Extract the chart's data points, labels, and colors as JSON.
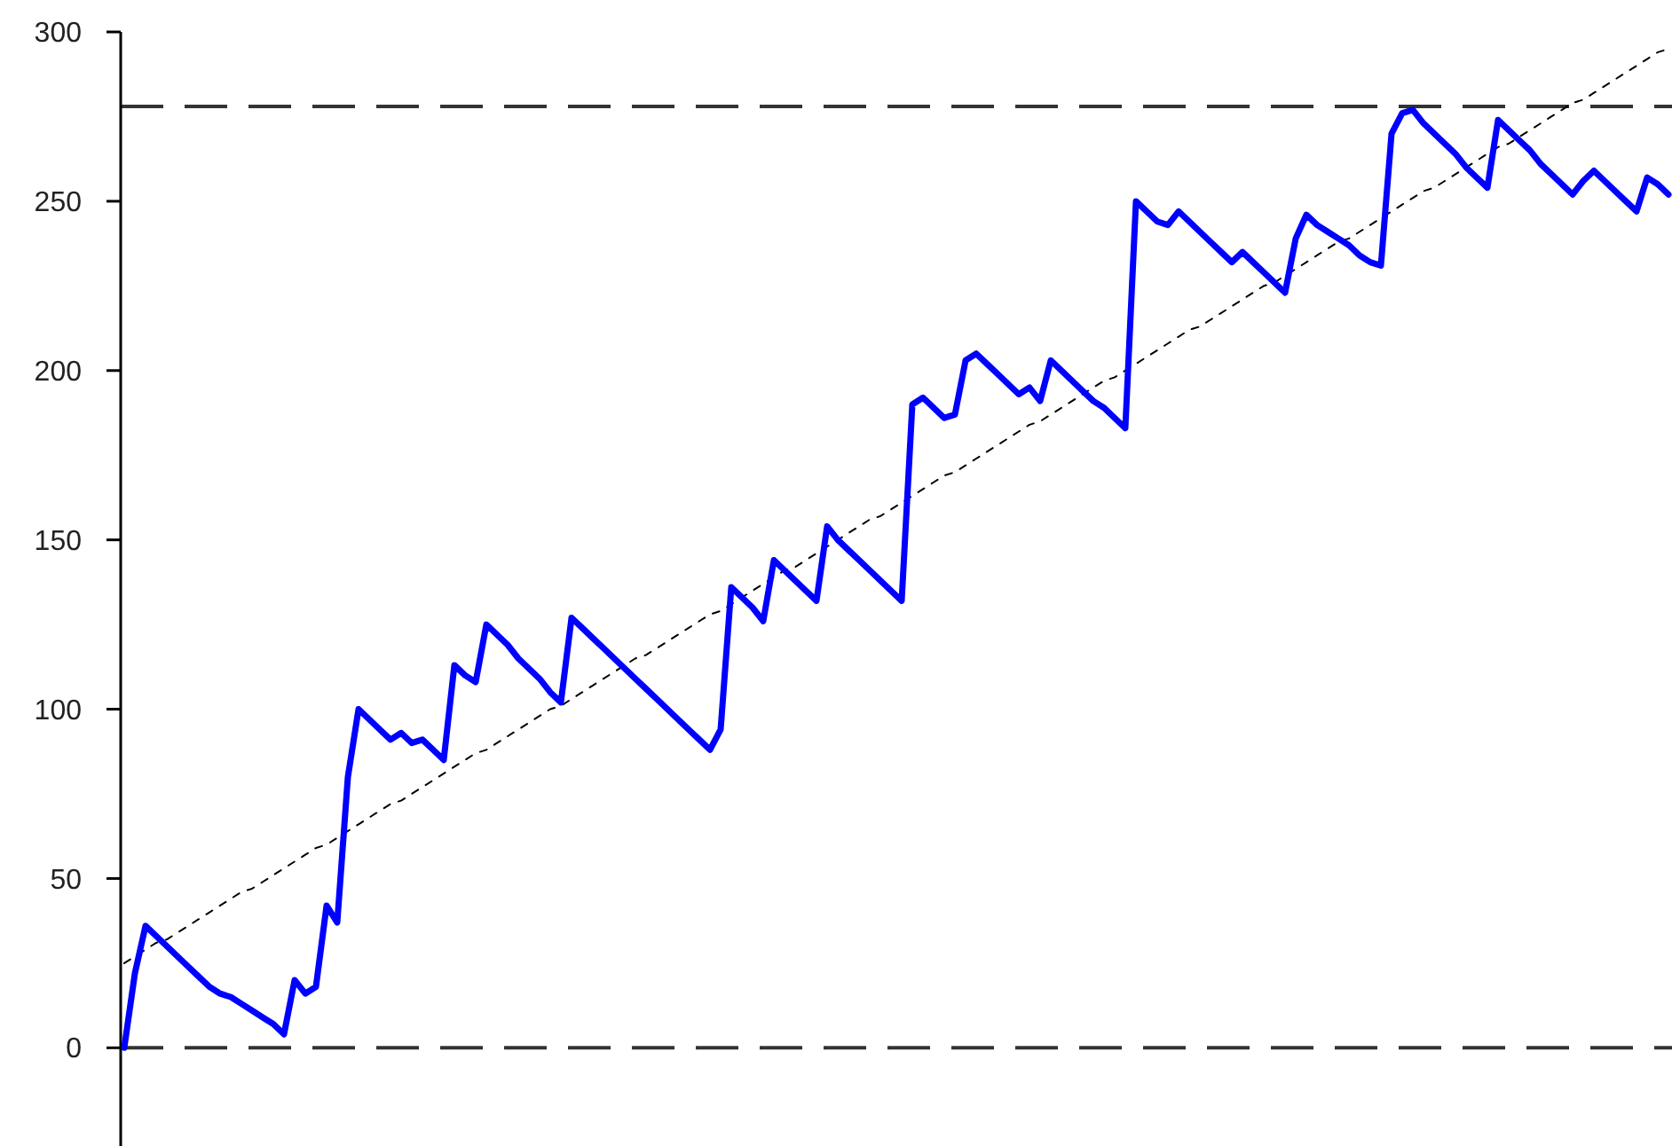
{
  "chart_data": {
    "type": "line",
    "categories": [
      null,
      null,
      null,
      null,
      null,
      null,
      null,
      null,
      null,
      null,
      null,
      null,
      null,
      null,
      null,
      null,
      null,
      null,
      null,
      null,
      null,
      null,
      null,
      null,
      null,
      null,
      null,
      null,
      null,
      null,
      null,
      null,
      null,
      null,
      null,
      null,
      null,
      null,
      null,
      null,
      null,
      null,
      null,
      null,
      null,
      null,
      null,
      null,
      null,
      null,
      null,
      null,
      null,
      null,
      null,
      null,
      null,
      null,
      null,
      null,
      null,
      null,
      null,
      null,
      null,
      null,
      null,
      null,
      null,
      null,
      null,
      null,
      null,
      null,
      null,
      null,
      null,
      null,
      null,
      null,
      null,
      null,
      null,
      null,
      null,
      null,
      null,
      null,
      null,
      null,
      null,
      null,
      null,
      null,
      null,
      null,
      null,
      null,
      null,
      null,
      null,
      null,
      null,
      null,
      null,
      null,
      null,
      null,
      null,
      null,
      null,
      null,
      null,
      null,
      null,
      null,
      null,
      null,
      null,
      null,
      null,
      null,
      null,
      null,
      null,
      null,
      null,
      null,
      null,
      null,
      null,
      null,
      null,
      null,
      null,
      null,
      null,
      null,
      null,
      null,
      null,
      null,
      null,
      null,
      null,
      null
    ],
    "series": [
      {
        "color": "#0000ff",
        "values": [
          0,
          22,
          36,
          33,
          30,
          27,
          24,
          21,
          18,
          16,
          15,
          13,
          11,
          9,
          7,
          4,
          20,
          16,
          18,
          42,
          37,
          80,
          100,
          97,
          94,
          91,
          93,
          90,
          91,
          88,
          85,
          113,
          110,
          108,
          125,
          122,
          119,
          115,
          112,
          109,
          105,
          102,
          127,
          124,
          121,
          118,
          115,
          112,
          109,
          106,
          103,
          100,
          97,
          94,
          91,
          88,
          94,
          136,
          133,
          130,
          126,
          144,
          141,
          138,
          135,
          132,
          154,
          150,
          147,
          144,
          141,
          138,
          135,
          132,
          190,
          192,
          189,
          186,
          187,
          203,
          205,
          202,
          199,
          196,
          193,
          195,
          191,
          203,
          200,
          197,
          194,
          191,
          189,
          186,
          183,
          250,
          247,
          244,
          243,
          247,
          244,
          241,
          238,
          235,
          232,
          235,
          232,
          229,
          226,
          223,
          239,
          246,
          243,
          241,
          239,
          237,
          234,
          232,
          231,
          270,
          276,
          277,
          273,
          270,
          267,
          264,
          260,
          257,
          254,
          274,
          271,
          268,
          265,
          261,
          258,
          255,
          252,
          256,
          259,
          256,
          253,
          250,
          247,
          257,
          255,
          252
        ]
      },
      {
        "type": "line",
        "color": "#000000",
        "line_style": "dashed",
        "values": [
          25,
          27,
          29,
          31,
          32,
          34,
          36,
          38,
          40,
          42,
          44,
          46,
          47,
          49,
          51,
          53,
          55,
          57,
          59,
          60,
          62,
          64,
          66,
          68,
          70,
          72,
          73,
          75,
          77,
          79,
          81,
          83,
          85,
          87,
          88,
          90,
          92,
          94,
          96,
          98,
          100,
          101,
          103,
          105,
          107,
          109,
          111,
          113,
          115,
          116,
          118,
          120,
          122,
          124,
          126,
          128,
          129,
          131,
          133,
          135,
          137,
          139,
          141,
          142,
          144,
          146,
          148,
          150,
          152,
          154,
          156,
          157,
          159,
          161,
          163,
          165,
          167,
          169,
          170,
          172,
          174,
          176,
          178,
          180,
          182,
          184,
          185,
          187,
          189,
          191,
          193,
          195,
          197,
          198,
          200,
          202,
          204,
          206,
          208,
          210,
          212,
          213,
          215,
          217,
          219,
          221,
          223,
          225,
          226,
          228,
          230,
          232,
          234,
          236,
          238,
          239,
          241,
          243,
          245,
          247,
          249,
          251,
          253,
          254,
          256,
          258,
          260,
          262,
          264,
          266,
          267,
          269,
          271,
          273,
          275,
          277,
          279,
          280,
          282,
          284,
          286,
          288,
          290,
          292,
          294,
          295
        ]
      }
    ],
    "ylim": [
      -29,
      300
    ],
    "yticks": [
      0,
      50,
      100,
      150,
      200,
      250,
      300
    ],
    "ref_lines": [
      {
        "axis": "y",
        "value": 0,
        "color": "#333333",
        "line_style": "dashed"
      },
      {
        "axis": "y",
        "value": 278,
        "color": "#333333",
        "line_style": "dashed"
      }
    ],
    "tick_labels": "y"
  }
}
